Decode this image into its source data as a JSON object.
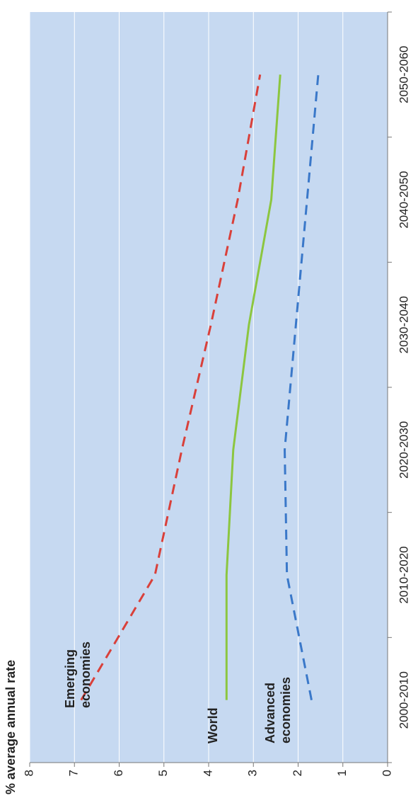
{
  "chart_data": {
    "type": "line",
    "y_label": "% average annual rate",
    "categories": [
      "2000-2010",
      "2010-2020",
      "2020-2030",
      "2030-2040",
      "2040-2050",
      "2050-2060"
    ],
    "series": [
      {
        "name": "Emerging economies",
        "color": "#d9403a",
        "dashed": true,
        "values": [
          6.85,
          5.2,
          4.6,
          3.95,
          3.35,
          2.85
        ]
      },
      {
        "name": "World",
        "color": "#8cc63f",
        "dashed": false,
        "values": [
          3.6,
          3.6,
          3.45,
          3.1,
          2.6,
          2.4
        ]
      },
      {
        "name": "Advanced economies",
        "color": "#3a78c9",
        "dashed": true,
        "values": [
          1.7,
          2.25,
          2.3,
          2.05,
          1.8,
          1.55
        ]
      }
    ],
    "ylim": [
      0,
      8
    ],
    "yticks": [
      0,
      1,
      2,
      3,
      4,
      5,
      6,
      7,
      8
    ],
    "grid": true
  }
}
